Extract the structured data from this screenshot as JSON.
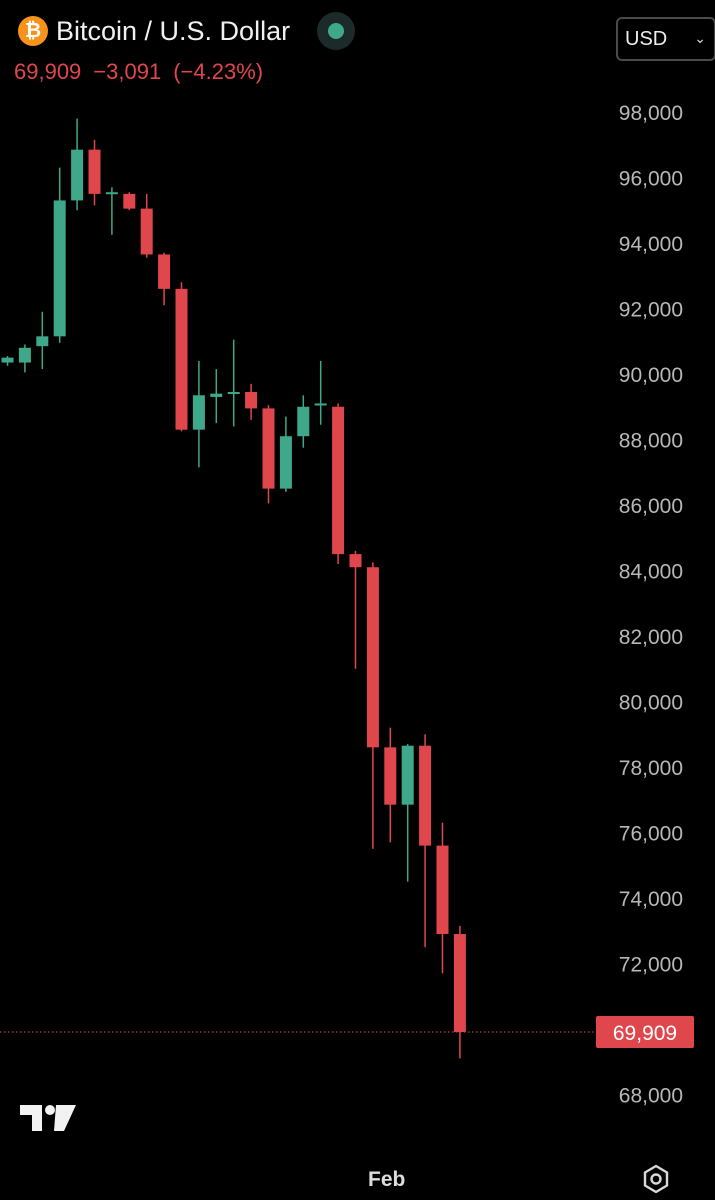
{
  "header": {
    "symbol_name": "Bitcoin / U.S. Dollar",
    "logo_glyph": "₿",
    "last_price": "69,909",
    "change": "−3,091",
    "change_pct": "(−4.23%)",
    "currency": "USD",
    "currency_chevron": "⌄"
  },
  "colors": {
    "up": "#3fa88a",
    "down": "#e0474c",
    "text": "#b8b8b8",
    "background": "#000000"
  },
  "chart_data": {
    "type": "candlestick",
    "y_axis_ticks": [
      68000,
      70000,
      72000,
      74000,
      76000,
      78000,
      80000,
      82000,
      84000,
      86000,
      88000,
      90000,
      92000,
      94000,
      96000,
      98000
    ],
    "y_axis_tick_labels": [
      "68,000",
      "70,000",
      "72,000",
      "74,000",
      "76,000",
      "78,000",
      "80,000",
      "82,000",
      "84,000",
      "86,000",
      "88,000",
      "90,000",
      "92,000",
      "94,000",
      "96,000",
      "98,000"
    ],
    "ylim": [
      66000,
      98500
    ],
    "x_axis_labels": [
      {
        "label": "Feb",
        "index": 22
      }
    ],
    "last_price_marker": {
      "value": 69909,
      "label": "69,909"
    },
    "candles": [
      {
        "o": 90350,
        "h": 90550,
        "l": 90250,
        "c": 90500
      },
      {
        "o": 90350,
        "h": 90900,
        "l": 90050,
        "c": 90800
      },
      {
        "o": 90850,
        "h": 91900,
        "l": 90150,
        "c": 91150
      },
      {
        "o": 91150,
        "h": 96300,
        "l": 90950,
        "c": 95300
      },
      {
        "o": 95300,
        "h": 97800,
        "l": 95000,
        "c": 96850
      },
      {
        "o": 96850,
        "h": 97150,
        "l": 95150,
        "c": 95500
      },
      {
        "o": 95500,
        "h": 95700,
        "l": 94250,
        "c": 95550
      },
      {
        "o": 95500,
        "h": 95550,
        "l": 95000,
        "c": 95050
      },
      {
        "o": 95050,
        "h": 95500,
        "l": 93550,
        "c": 93650
      },
      {
        "o": 93650,
        "h": 93700,
        "l": 92100,
        "c": 92600
      },
      {
        "o": 92600,
        "h": 92800,
        "l": 88250,
        "c": 88300
      },
      {
        "o": 88300,
        "h": 90400,
        "l": 87150,
        "c": 89350
      },
      {
        "o": 89300,
        "h": 90150,
        "l": 88500,
        "c": 89400
      },
      {
        "o": 89400,
        "h": 91050,
        "l": 88400,
        "c": 89450
      },
      {
        "o": 89450,
        "h": 89700,
        "l": 88600,
        "c": 88950
      },
      {
        "o": 88950,
        "h": 89050,
        "l": 86050,
        "c": 86500
      },
      {
        "o": 86500,
        "h": 88700,
        "l": 86400,
        "c": 88100
      },
      {
        "o": 88100,
        "h": 89350,
        "l": 87750,
        "c": 89000
      },
      {
        "o": 89050,
        "h": 90400,
        "l": 88450,
        "c": 89100
      },
      {
        "o": 89000,
        "h": 89100,
        "l": 84200,
        "c": 84500
      },
      {
        "o": 84500,
        "h": 84600,
        "l": 81000,
        "c": 84100
      },
      {
        "o": 84100,
        "h": 84250,
        "l": 75500,
        "c": 78600
      },
      {
        "o": 78600,
        "h": 79200,
        "l": 75700,
        "c": 76850
      },
      {
        "o": 76850,
        "h": 78700,
        "l": 74500,
        "c": 78650
      },
      {
        "o": 78650,
        "h": 79000,
        "l": 72500,
        "c": 75600
      },
      {
        "o": 75600,
        "h": 76300,
        "l": 71700,
        "c": 72900
      },
      {
        "o": 72900,
        "h": 73150,
        "l": 69100,
        "c": 69909
      }
    ]
  }
}
